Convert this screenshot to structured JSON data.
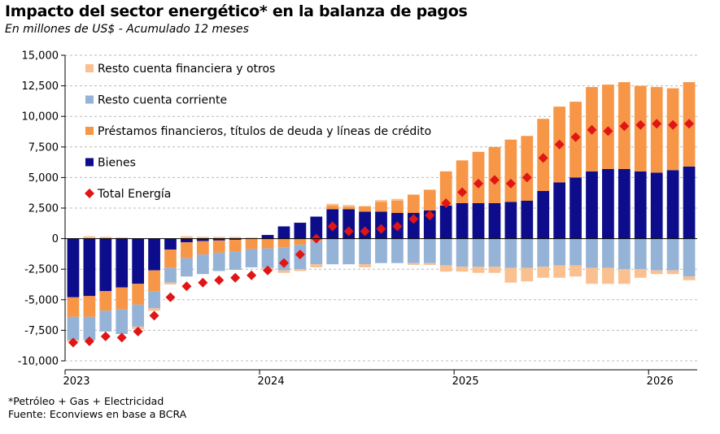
{
  "title": "Impacto del sector energético* en la balanza de pagos",
  "subtitle": "En millones de US$ - Acumulado 12 meses",
  "footnote": "*Petróleo + Gas + Electricidad",
  "source": "Fuente: Econviews en base a BCRA",
  "chart_data": {
    "type": "bar",
    "stacked": true,
    "ylim": [
      -10000,
      15000
    ],
    "yticks": [
      "15,000",
      "12,500",
      "10,000",
      "7,500",
      "5,000",
      "2,500",
      "0",
      "-2,500",
      "-5,000",
      "-7,500",
      "-10,000"
    ],
    "ytick_values": [
      15000,
      12500,
      10000,
      7500,
      5000,
      2500,
      0,
      -2500,
      -5000,
      -7500,
      -10000
    ],
    "xtick_labels": [
      {
        "label": "2023",
        "at": 0
      },
      {
        "label": "2024",
        "at": 12
      },
      {
        "label": "2025",
        "at": 24
      },
      {
        "label": "2026",
        "at": 36
      }
    ],
    "grid": "horizontal-dashed",
    "legend_position": "top-left",
    "legend_order": [
      "Resto cuenta financiera y otros",
      "Resto cuenta corriente",
      "Préstamos financieros, títulos de deuda y líneas de crédito",
      "Bienes",
      "Total Energía"
    ],
    "series": [
      {
        "name": "Bienes",
        "color": "#0d0d8c",
        "values": [
          -4800,
          -4700,
          -4300,
          -4000,
          -3700,
          -2600,
          -900,
          -300,
          -200,
          -150,
          -100,
          0,
          300,
          1000,
          1300,
          1800,
          2400,
          2400,
          2200,
          2200,
          2100,
          2100,
          2300,
          2700,
          2900,
          2900,
          2900,
          3000,
          3100,
          3900,
          4600,
          5000,
          5500,
          5700,
          5700,
          5500,
          5400,
          5600,
          5900
        ]
      },
      {
        "name": "Préstamos financieros, títulos de deuda y líneas de crédito",
        "color": "#f79646",
        "values": [
          -1600,
          -1700,
          -1600,
          -1800,
          -1700,
          -1700,
          -1500,
          -1300,
          -1100,
          -1000,
          -950,
          -850,
          -800,
          -700,
          -500,
          -200,
          300,
          200,
          450,
          800,
          1000,
          1500,
          1700,
          2800,
          3500,
          4200,
          4600,
          5100,
          5300,
          5900,
          6200,
          6200,
          6900,
          6900,
          7100,
          7000,
          7000,
          6700,
          6900
        ]
      },
      {
        "name": "Resto cuenta corriente",
        "color": "#95b3d7",
        "values": [
          -1900,
          -1900,
          -1700,
          -2000,
          -1800,
          -1400,
          -1200,
          -1500,
          -1600,
          -1500,
          -1500,
          -1500,
          -1600,
          -1900,
          -2000,
          -1900,
          -2100,
          -2100,
          -2100,
          -2000,
          -2000,
          -2000,
          -2000,
          -2200,
          -2300,
          -2300,
          -2300,
          -2400,
          -2400,
          -2300,
          -2200,
          -2200,
          -2400,
          -2400,
          -2500,
          -2500,
          -2600,
          -2600,
          -3100
        ]
      },
      {
        "name": "Resto cuenta financiera y otros",
        "color": "#fac090",
        "values": [
          -150,
          200,
          150,
          100,
          -200,
          -200,
          -150,
          200,
          150,
          150,
          150,
          100,
          -150,
          -200,
          -150,
          -250,
          150,
          150,
          -250,
          150,
          150,
          -150,
          -150,
          -500,
          -400,
          -500,
          -500,
          -1200,
          -1100,
          -900,
          -1000,
          -900,
          -1300,
          -1300,
          -1200,
          -700,
          -300,
          -300,
          -300
        ]
      },
      {
        "name": "Total Energía",
        "type": "scatter",
        "color": "#e01515",
        "values": [
          -8500,
          -8400,
          -8000,
          -8100,
          -7600,
          -6300,
          -4800,
          -3900,
          -3600,
          -3400,
          -3200,
          -3000,
          -2600,
          -2000,
          -1300,
          0,
          1000,
          600,
          600,
          800,
          1000,
          1600,
          1900,
          2900,
          3800,
          4500,
          4800,
          4500,
          5000,
          6600,
          7700,
          8300,
          8900,
          8800,
          9200,
          9300,
          9400,
          9300,
          9400
        ]
      }
    ]
  }
}
